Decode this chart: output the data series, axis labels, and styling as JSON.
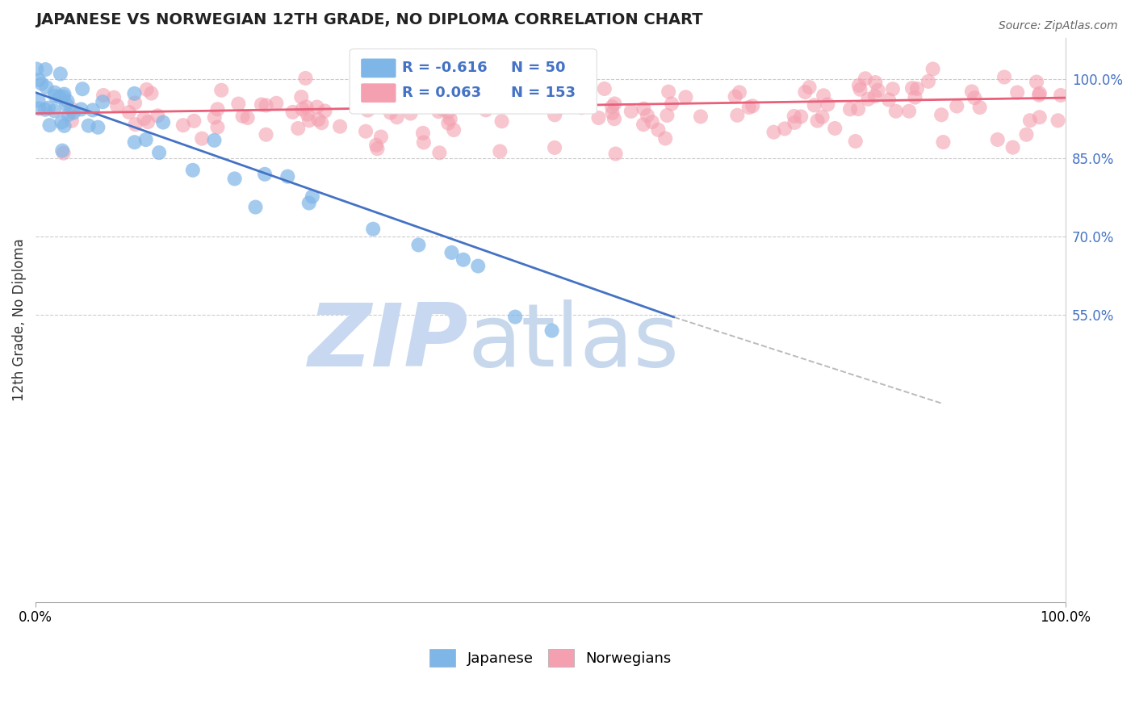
{
  "title": "JAPANESE VS NORWEGIAN 12TH GRADE, NO DIPLOMA CORRELATION CHART",
  "source_text": "Source: ZipAtlas.com",
  "ylabel": "12th Grade, No Diploma",
  "r1": "-0.616",
  "n1": "50",
  "r2": "0.063",
  "n2": "153",
  "xlim": [
    0.0,
    1.0
  ],
  "ylim": [
    0.0,
    1.08
  ],
  "yticks": [
    0.55,
    0.7,
    0.85,
    1.0
  ],
  "ytick_labels": [
    "55.0%",
    "70.0%",
    "85.0%",
    "100.0%"
  ],
  "xtick_labels": [
    "0.0%",
    "100.0%"
  ],
  "xticks": [
    0.0,
    1.0
  ],
  "color_japanese": "#7EB6E8",
  "color_norwegian": "#F4A0B0",
  "color_line_japanese": "#4472C4",
  "color_line_norwegian": "#E8607A",
  "watermark_zip": "ZIP",
  "watermark_atlas": "atlas",
  "watermark_color_zip": "#C8D8F0",
  "watermark_color_atlas": "#C8D8F0",
  "legend_label1": "Japanese",
  "legend_label2": "Norwegians",
  "blue_line_x": [
    0.0,
    0.62
  ],
  "blue_line_y": [
    0.975,
    0.545
  ],
  "dashed_line_x": [
    0.62,
    0.88
  ],
  "dashed_line_y": [
    0.545,
    0.38
  ],
  "pink_line_x": [
    0.0,
    1.0
  ],
  "pink_line_y": [
    0.935,
    0.965
  ]
}
